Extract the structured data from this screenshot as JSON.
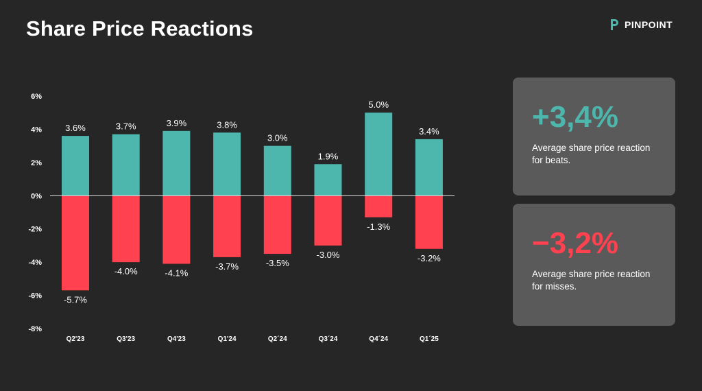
{
  "title": "Share Price Reactions",
  "brand": {
    "name": "PINPOINT",
    "icon": "pinpoint-logo-icon",
    "icon_color": "#4db6ad"
  },
  "colors": {
    "beat": "#4db6ad",
    "miss": "#ff4150",
    "background": "#262626",
    "card": "#5a5a5a"
  },
  "cards": {
    "beats": {
      "value": "+3,4%",
      "desc_line1": "Average share price reaction",
      "desc_line2": "for beats."
    },
    "misses": {
      "value": "−3,2%",
      "desc_line1": "Average share price reaction",
      "desc_line2": "for misses."
    }
  },
  "chart_data": {
    "type": "bar",
    "categories": [
      "Q2'23",
      "Q3'23",
      "Q4'23",
      "Q1'24",
      "Q2´24",
      "Q3´24",
      "Q4´24",
      "Q1´25"
    ],
    "series": [
      {
        "values": [
          3.6,
          3.7,
          3.9,
          3.8,
          3.0,
          1.9,
          5.0,
          3.4
        ],
        "labels": [
          "3.6%",
          "3.7%",
          "3.9%",
          "3.8%",
          "3.0%",
          "1.9%",
          "5.0%",
          "3.4%"
        ],
        "color": "#4db6ad"
      },
      {
        "values": [
          -5.7,
          -4.0,
          -4.1,
          -3.7,
          -3.5,
          -3.0,
          -1.3,
          -3.2
        ],
        "labels": [
          "-5.7%",
          "-4.0%",
          "-4.1%",
          "-3.7%",
          "-3.5%",
          "-3.0%",
          "-1.3%",
          "-3.2%"
        ],
        "color": "#ff4150"
      }
    ],
    "ylim": [
      -8,
      6
    ],
    "yticks": [
      6,
      4,
      2,
      0,
      -2,
      -4,
      -6,
      -8
    ],
    "ytick_labels": [
      "6%",
      "4%",
      "2%",
      "0%",
      "-2%",
      "-4%",
      "-6%",
      "-8%"
    ],
    "xlabel": "",
    "ylabel": "",
    "grid": false,
    "zero_line": true
  }
}
